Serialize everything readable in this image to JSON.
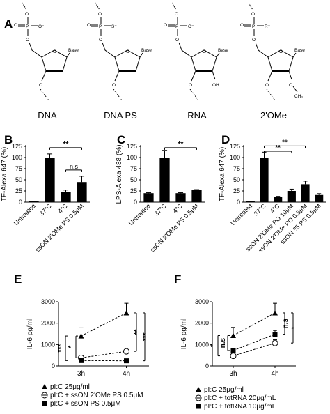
{
  "panelA": {
    "letter": "A",
    "molecules": [
      {
        "name": "DNA",
        "group": "O⁻",
        "sugar_sub": ""
      },
      {
        "name": "DNA PS",
        "group": "S⁻",
        "sugar_sub": ""
      },
      {
        "name": "RNA",
        "group": "O⁻",
        "sugar_sub": "OH"
      },
      {
        "name": "2'OMe",
        "group": "R⁻",
        "sugar_sub": "O"
      }
    ],
    "atoms": {
      "O": "O",
      "P": "P",
      "base": "Base",
      "ch3": "CH₃"
    }
  },
  "chart_data": [
    {
      "panel": "B",
      "type": "bar",
      "ylabel": "TF-Alexa 647 (%)",
      "ylim": [
        0,
        125
      ],
      "yticks": [
        "0",
        "25",
        "50",
        "75",
        "100",
        "125"
      ],
      "categories": [
        "Untreated",
        "37°C",
        "4°C",
        "ssON 2'OMe PS 0.5μM"
      ],
      "values": [
        0,
        100,
        22,
        45
      ],
      "errors": [
        0,
        8,
        5,
        13
      ],
      "annotations": [
        "**",
        "n.s"
      ]
    },
    {
      "panel": "C",
      "type": "bar",
      "ylabel": "LPS-Alexa 488 (%)",
      "ylim": [
        0,
        125
      ],
      "yticks": [
        "0",
        "25",
        "50",
        "75",
        "100",
        "125"
      ],
      "categories": [
        "Untreated",
        "37°C",
        "4°C",
        "ssON 2'OMe PS 0.5μM"
      ],
      "values": [
        20,
        100,
        20,
        27
      ],
      "errors": [
        1,
        16,
        1,
        1
      ],
      "annotations": [
        "**"
      ]
    },
    {
      "panel": "D",
      "type": "bar",
      "ylabel": "TF-Alexa 647 (%)",
      "ylim": [
        0,
        125
      ],
      "yticks": [
        "0",
        "25",
        "50",
        "75",
        "100",
        "125"
      ],
      "categories": [
        "Untreated",
        "37°C",
        "4°C",
        "ssON 2'OMe PO 10μM",
        "ssON 2'OMe PO 0.5μM",
        "ssON 35 PS 0.5μM"
      ],
      "values": [
        0,
        100,
        12,
        25,
        40,
        16
      ],
      "errors": [
        0,
        12,
        1,
        4,
        7,
        3
      ],
      "annotations": [
        "**",
        "**"
      ]
    },
    {
      "panel": "E",
      "type": "line",
      "ylabel": "IL-6 pg/ml",
      "ylim": [
        0,
        3000
      ],
      "yticks": [
        "0",
        "1000",
        "2000",
        "3000"
      ],
      "x": [
        "3h",
        "4h"
      ],
      "series": [
        {
          "name": "pI:C 25μg/ml",
          "marker": "triangle",
          "values": [
            1400,
            2480
          ],
          "errors": [
            380,
            450
          ]
        },
        {
          "name": "pI:C + ssON 2'OMe PS 0.5μM",
          "marker": "circle-open",
          "values": [
            380,
            680
          ],
          "errors": [
            40,
            60
          ]
        },
        {
          "name": "pI:C + ssON PS 0.5μM",
          "marker": "square",
          "values": [
            250,
            240
          ],
          "errors": [
            20,
            20
          ]
        }
      ],
      "annotations": [
        "***",
        "*",
        "**",
        "***"
      ]
    },
    {
      "panel": "F",
      "type": "line",
      "ylabel": "IL-6 pg/ml",
      "ylim": [
        0,
        3000
      ],
      "yticks": [
        "0",
        "1000",
        "2000",
        "3000"
      ],
      "x": [
        "3h",
        "4h"
      ],
      "series": [
        {
          "name": "pI:C 25μg/ml",
          "marker": "triangle",
          "values": [
            1420,
            2480
          ],
          "errors": [
            380,
            450
          ]
        },
        {
          "name": "pI:C + totRNA 20μg/mL",
          "marker": "circle-open",
          "values": [
            470,
            1070
          ],
          "errors": [
            60,
            150
          ]
        },
        {
          "name": "pI:C + totRNA 10μg/mL",
          "marker": "square",
          "values": [
            720,
            1480
          ],
          "errors": [
            60,
            180
          ]
        }
      ],
      "annotations": [
        "n.s",
        "*",
        "n.s",
        "*"
      ]
    }
  ]
}
